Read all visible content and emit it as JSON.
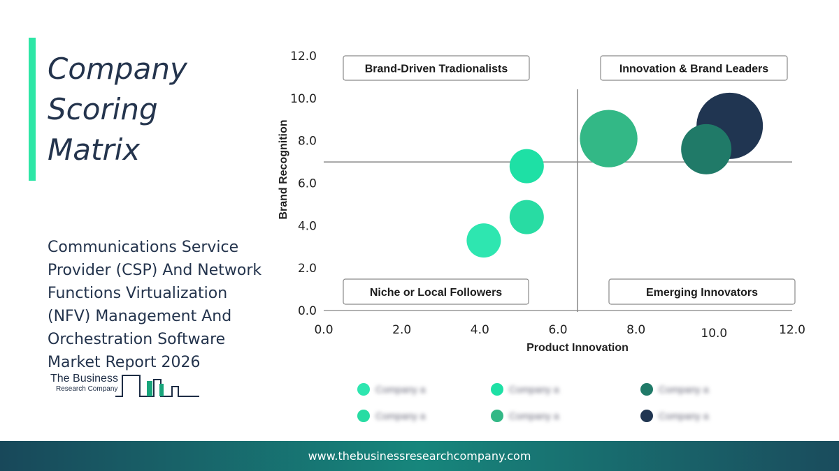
{
  "title": "Company\nScoring\nMatrix",
  "subtitle": "Communications Service Provider (CSP) And Network Functions Virtualization (NFV) Management And Orchestration Software Market Report 2026",
  "logo": {
    "line1": "The Business",
    "line2": "Research Company"
  },
  "footer": {
    "url": "www.thebusinessresearchcompany.com"
  },
  "colors": {
    "accent": "#2ee6a6",
    "navy": "#24344d"
  },
  "chart_data": {
    "type": "scatter",
    "xlabel": "Product Innovation",
    "ylabel": "Brand Recognition",
    "xlim": [
      0,
      12
    ],
    "ylim": [
      0,
      12
    ],
    "x_ticks": [
      "0.0",
      "2.0",
      "4.0",
      "6.0",
      "8.0",
      "10.0",
      "12.0"
    ],
    "y_ticks": [
      "0.0",
      "2.0",
      "4.0",
      "6.0",
      "8.0",
      "10.0",
      "12.0"
    ],
    "x_divider": 6.5,
    "y_divider": 7.0,
    "grid": false,
    "quadrants": [
      {
        "id": "tl",
        "label": "Brand-Driven Tradionalists"
      },
      {
        "id": "tr",
        "label": "Innovation & Brand Leaders"
      },
      {
        "id": "bl",
        "label": "Niche or Local Followers"
      },
      {
        "id": "br",
        "label": "Emerging Innovators"
      }
    ],
    "points": [
      {
        "x": 4.1,
        "y": 3.3,
        "size": 1,
        "color": "#2ee6b0"
      },
      {
        "x": 5.2,
        "y": 4.4,
        "size": 1,
        "color": "#28dca3"
      },
      {
        "x": 5.2,
        "y": 6.8,
        "size": 1,
        "color": "#1ee0a5"
      },
      {
        "x": 7.3,
        "y": 8.1,
        "size": 6,
        "color": "#33b886"
      },
      {
        "x": 10.4,
        "y": 8.7,
        "size": 9,
        "color": "#203551"
      },
      {
        "x": 9.8,
        "y": 7.6,
        "size": 4,
        "color": "#207a68"
      }
    ],
    "legend": [
      {
        "label": "Company a",
        "color": "#2ee6b0"
      },
      {
        "label": "Company a",
        "color": "#1ee0a5"
      },
      {
        "label": "Company a",
        "color": "#207a68"
      },
      {
        "label": "Company a",
        "color": "#28dca3"
      },
      {
        "label": "Company a",
        "color": "#33b886"
      },
      {
        "label": "Company a",
        "color": "#203551"
      }
    ]
  }
}
